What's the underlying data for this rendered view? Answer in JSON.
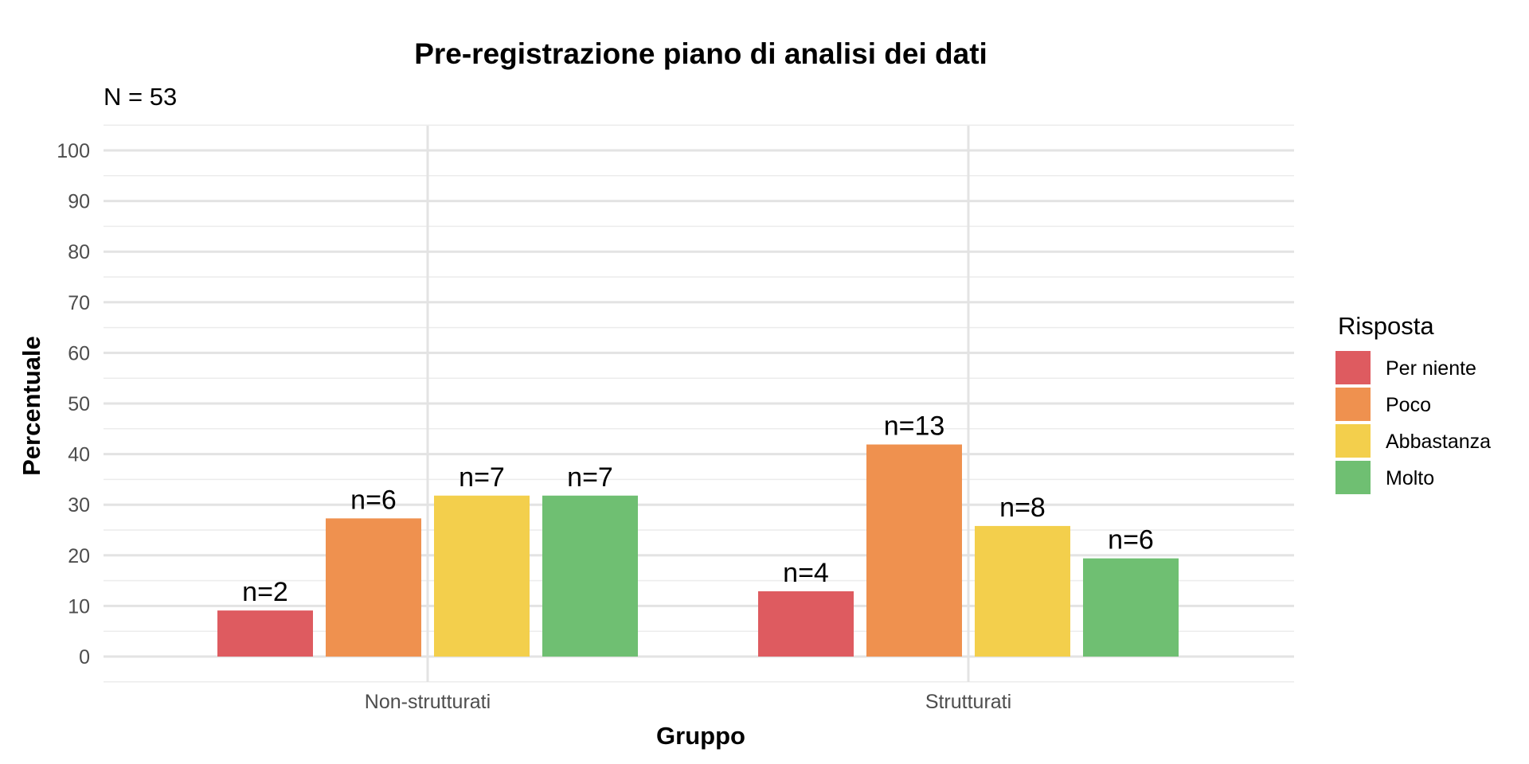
{
  "chart_data": {
    "type": "bar",
    "title": "Pre-registrazione piano di analisi dei dati",
    "subtitle": "N = 53",
    "xlabel": "Gruppo",
    "ylabel": "Percentuale",
    "ylim": [
      0,
      105
    ],
    "yticks": [
      0,
      10,
      20,
      30,
      40,
      50,
      60,
      70,
      80,
      90,
      100
    ],
    "grid": true,
    "legend_title": "Risposta",
    "legend_position": "right",
    "categories": [
      "Non-strutturati",
      "Strutturati"
    ],
    "series": [
      {
        "name": "Per niente",
        "color": "#de5b60",
        "values": [
          9.1,
          12.9
        ],
        "labels": [
          "n=2",
          "n=4"
        ]
      },
      {
        "name": "Poco",
        "color": "#ef914f",
        "values": [
          27.3,
          41.9
        ],
        "labels": [
          "n=6",
          "n=13"
        ]
      },
      {
        "name": "Abbastanza",
        "color": "#f3cf4c",
        "values": [
          31.8,
          25.8
        ],
        "labels": [
          "n=7",
          "n=8"
        ]
      },
      {
        "name": "Molto",
        "color": "#6fbf72",
        "values": [
          31.8,
          19.4
        ],
        "labels": [
          "n=7",
          "n=6"
        ]
      }
    ]
  }
}
